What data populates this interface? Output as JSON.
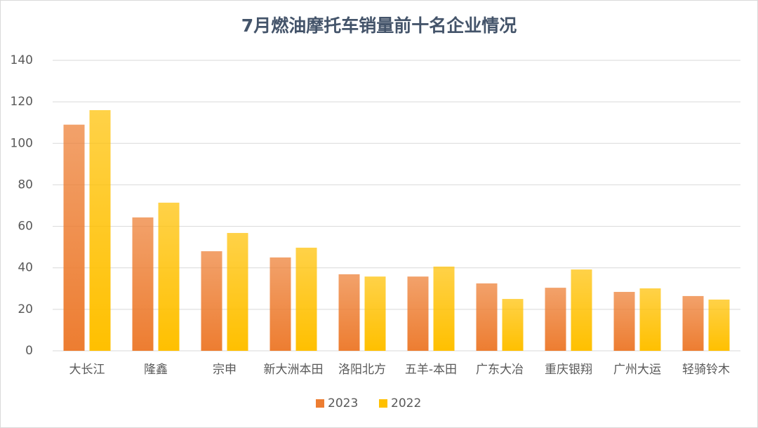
{
  "chart_data": {
    "type": "bar",
    "title": "7月燃油摩托车销量前十名企业情况",
    "categories": [
      "大长江",
      "隆鑫",
      "宗申",
      "新大洲本田",
      "洛阳北方",
      "五羊-本田",
      "广东大冶",
      "重庆银翔",
      "广州大运",
      "轻骑铃木"
    ],
    "series": [
      {
        "name": "2023",
        "color": "#ed7d31",
        "values": [
          109,
          64.3,
          48,
          45,
          36.9,
          35.8,
          32.5,
          30.4,
          28.4,
          26.4
        ]
      },
      {
        "name": "2022",
        "color": "#ffc000",
        "values": [
          116,
          71.4,
          56.8,
          49.7,
          35.8,
          40.6,
          25,
          39.2,
          30.1,
          24.7
        ]
      }
    ],
    "ylim": [
      0,
      140
    ],
    "yticks": [
      0,
      20,
      40,
      60,
      80,
      100,
      120,
      140
    ],
    "grid": true,
    "legend": "bottom"
  }
}
